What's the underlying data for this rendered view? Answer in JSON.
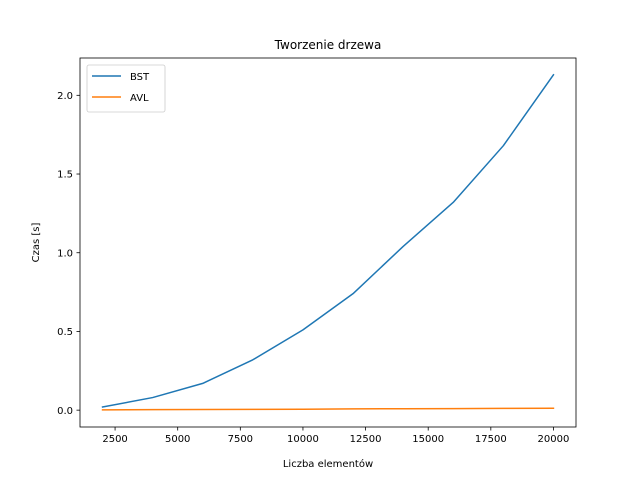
{
  "chart_data": {
    "type": "line",
    "title": "Tworzenie drzewa",
    "xlabel": "Liczba elementów",
    "ylabel": "Czas [s]",
    "xlim": [
      1100,
      20900
    ],
    "ylim": [
      -0.107,
      2.237
    ],
    "xticks": [
      2500,
      5000,
      7500,
      10000,
      12500,
      15000,
      17500,
      20000
    ],
    "xtick_labels": [
      "2500",
      "5000",
      "7500",
      "10000",
      "12500",
      "15000",
      "17500",
      "20000"
    ],
    "yticks": [
      0.0,
      0.5,
      1.0,
      1.5,
      2.0
    ],
    "ytick_labels": [
      "0.0",
      "0.5",
      "1.0",
      "1.5",
      "2.0"
    ],
    "grid": false,
    "legend_position": "top-left",
    "x": [
      2000,
      4000,
      6000,
      8000,
      10000,
      12000,
      14000,
      16000,
      18000,
      20000
    ],
    "series": [
      {
        "name": "BST",
        "color": "#1f77b4",
        "values": [
          0.02,
          0.08,
          0.17,
          0.32,
          0.51,
          0.74,
          1.04,
          1.32,
          1.68,
          2.13
        ]
      },
      {
        "name": "AVL",
        "color": "#ff7f0e",
        "values": [
          0.002,
          0.003,
          0.004,
          0.005,
          0.006,
          0.008,
          0.009,
          0.01,
          0.011,
          0.012
        ]
      }
    ]
  }
}
